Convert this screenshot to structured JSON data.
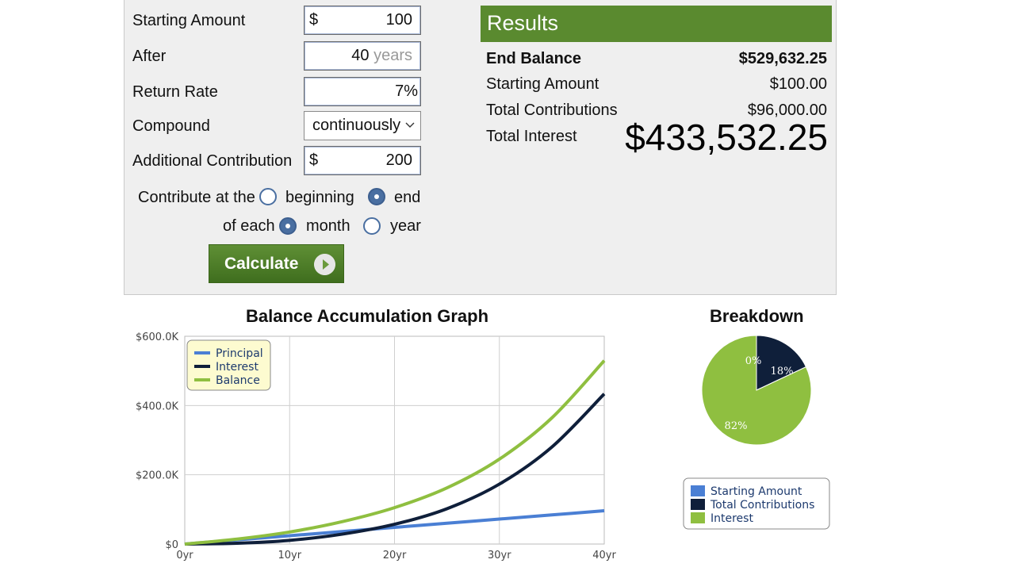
{
  "form": {
    "starting_amount_label": "Starting Amount",
    "starting_amount_prefix": "$",
    "starting_amount_value": "100",
    "after_label": "After",
    "after_value": "40",
    "after_unit": "years",
    "return_rate_label": "Return Rate",
    "return_rate_value": "7%",
    "compound_label": "Compound",
    "compound_value": "continuously",
    "additional_label": "Additional Contribution",
    "additional_prefix": "$",
    "additional_value": "200",
    "contribute_at_label": "Contribute at the",
    "beginning_label": "beginning",
    "end_label": "end",
    "of_each_label": "of each",
    "month_label": "month",
    "year_label": "year",
    "contribute_selected": "end",
    "period_selected": "month",
    "calculate_label": "Calculate"
  },
  "results": {
    "title": "Results",
    "end_balance_label": "End Balance",
    "end_balance_value": "$529,632.25",
    "starting_amount_label": "Starting Amount",
    "starting_amount_value": "$100.00",
    "total_contributions_label": "Total Contributions",
    "total_contributions_value": "$96,000.00",
    "total_interest_label": "Total Interest",
    "total_interest_value": "$433,532.25"
  },
  "colors": {
    "principal": "#4a7fd4",
    "interest": "#0f1f3a",
    "balance": "#8fbf40",
    "accent": "#5a8a2f",
    "radio": "#4a6fa1"
  },
  "chart_data": [
    {
      "type": "line",
      "title": "Balance Accumulation Graph",
      "x": [
        0,
        5,
        10,
        15,
        20,
        25,
        30,
        35,
        40
      ],
      "x_tick_labels": [
        "0yr",
        "10yr",
        "20yr",
        "30yr",
        "40yr"
      ],
      "x_tick_values": [
        0,
        10,
        20,
        30,
        40
      ],
      "y_tick_labels": [
        "$0",
        "$200.0K",
        "$400.0K",
        "$600.0K"
      ],
      "y_tick_values": [
        0,
        200000,
        400000,
        600000
      ],
      "ylim": [
        0,
        600000
      ],
      "xlim": [
        0,
        40
      ],
      "grid": true,
      "legend_position": "top-left",
      "series": [
        {
          "name": "Principal",
          "values": [
            100,
            12100,
            24100,
            36100,
            48100,
            60100,
            72100,
            84100,
            96100
          ]
        },
        {
          "name": "Interest",
          "values": [
            0,
            2300,
            10700,
            28500,
            57000,
            102000,
            173000,
            280000,
            433500
          ]
        },
        {
          "name": "Balance",
          "values": [
            100,
            14400,
            34800,
            64600,
            105100,
            162100,
            245100,
            364100,
            529600
          ]
        }
      ]
    },
    {
      "type": "pie",
      "title": "Breakdown",
      "categories": [
        "Starting Amount",
        "Total Contributions",
        "Interest"
      ],
      "values": [
        0,
        18,
        82
      ],
      "slice_labels": [
        "0%",
        "18%",
        "82%"
      ],
      "legend_position": "bottom"
    }
  ]
}
